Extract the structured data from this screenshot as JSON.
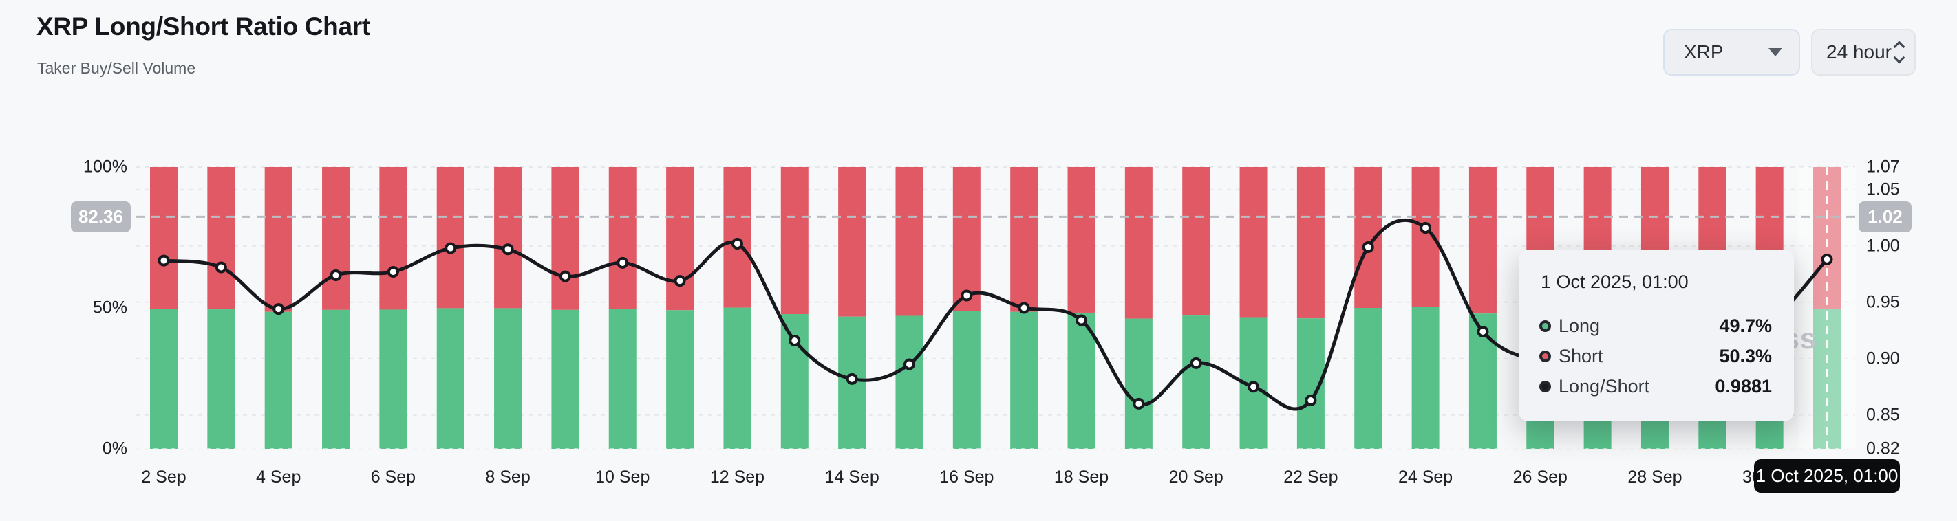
{
  "header": {
    "title": "XRP Long/Short Ratio Chart",
    "subtitle": "Taker Buy/Sell Volume"
  },
  "controls": {
    "symbol": {
      "value": "XRP"
    },
    "interval": {
      "value": "24 hour"
    }
  },
  "watermark": "coinglass",
  "tooltip": {
    "title": "1 Oct 2025, 01:00",
    "rows": [
      {
        "label": "Long",
        "value": "49.7%",
        "color": "#57c189"
      },
      {
        "label": "Short",
        "value": "50.3%",
        "color": "#e25a68"
      },
      {
        "label": "Long/Short",
        "value": "0.9881",
        "color": "#17191e"
      }
    ]
  },
  "chart_data": {
    "type": "bar+line",
    "title": "XRP Long/Short Ratio Chart",
    "categories": [
      "2 Sep",
      "3 Sep",
      "4 Sep",
      "5 Sep",
      "6 Sep",
      "7 Sep",
      "8 Sep",
      "9 Sep",
      "10 Sep",
      "11 Sep",
      "12 Sep",
      "13 Sep",
      "14 Sep",
      "15 Sep",
      "16 Sep",
      "17 Sep",
      "18 Sep",
      "19 Sep",
      "20 Sep",
      "21 Sep",
      "22 Sep",
      "23 Sep",
      "24 Sep",
      "25 Sep",
      "26 Sep",
      "27 Sep",
      "28 Sep",
      "29 Sep",
      "30 Sep",
      "1 Oct"
    ],
    "series": [
      {
        "name": "Long",
        "kind": "bar",
        "stack": "volume",
        "unit": "%",
        "color": "#57c189",
        "values": [
          49.7,
          49.5,
          48.6,
          49.3,
          49.4,
          49.9,
          49.9,
          49.3,
          49.6,
          49.2,
          50.1,
          47.8,
          46.9,
          47.2,
          48.9,
          48.6,
          48.3,
          46.2,
          47.3,
          46.7,
          46.3,
          50.0,
          50.4,
          48.0,
          47.3,
          47.1,
          47.3,
          47.8,
          48.2,
          49.7
        ]
      },
      {
        "name": "Short",
        "kind": "bar",
        "stack": "volume",
        "unit": "%",
        "color": "#e15964",
        "values": [
          50.3,
          50.5,
          51.4,
          50.7,
          50.6,
          50.1,
          50.1,
          50.7,
          50.4,
          50.8,
          49.9,
          52.2,
          53.1,
          52.8,
          51.1,
          51.4,
          51.7,
          53.8,
          52.7,
          53.3,
          53.7,
          50.0,
          49.6,
          52.0,
          52.7,
          52.9,
          52.7,
          52.2,
          51.8,
          50.3
        ]
      },
      {
        "name": "Long/Short",
        "kind": "line",
        "marker": "hollow-circle",
        "color": "#17191e",
        "values": [
          0.987,
          0.981,
          0.944,
          0.974,
          0.977,
          0.998,
          0.997,
          0.973,
          0.985,
          0.969,
          1.002,
          0.916,
          0.882,
          0.895,
          0.956,
          0.945,
          0.934,
          0.86,
          0.896,
          0.875,
          0.863,
          0.999,
          1.016,
          0.924,
          0.897,
          0.889,
          0.897,
          0.915,
          0.932,
          0.9881
        ]
      }
    ],
    "x_axis": {
      "tick_step": 2
    },
    "left_axis": {
      "min": 0,
      "max": 100,
      "ticks": [
        {
          "label": "100%",
          "value": 100
        },
        {
          "label": "50%",
          "value": 50
        },
        {
          "label": "0%",
          "value": 0
        }
      ]
    },
    "right_axis": {
      "min": 0.82,
      "max": 1.07,
      "ticks": [
        {
          "label": "1.07",
          "value": 1.07
        },
        {
          "label": "1.05",
          "value": 1.05
        },
        {
          "label": "1.00",
          "value": 1.0
        },
        {
          "label": "0.95",
          "value": 0.95
        },
        {
          "label": "0.90",
          "value": 0.9
        },
        {
          "label": "0.85",
          "value": 0.85
        },
        {
          "label": "0.82",
          "value": 0.82
        }
      ]
    },
    "grid": true,
    "legend_position": "none",
    "current_value_line": {
      "percent": 82.36,
      "left_badge": "82.36",
      "right_badge": "1.02"
    },
    "crosshair": {
      "index": 29,
      "axis_label": "1 Oct 2025, 01:00"
    }
  }
}
